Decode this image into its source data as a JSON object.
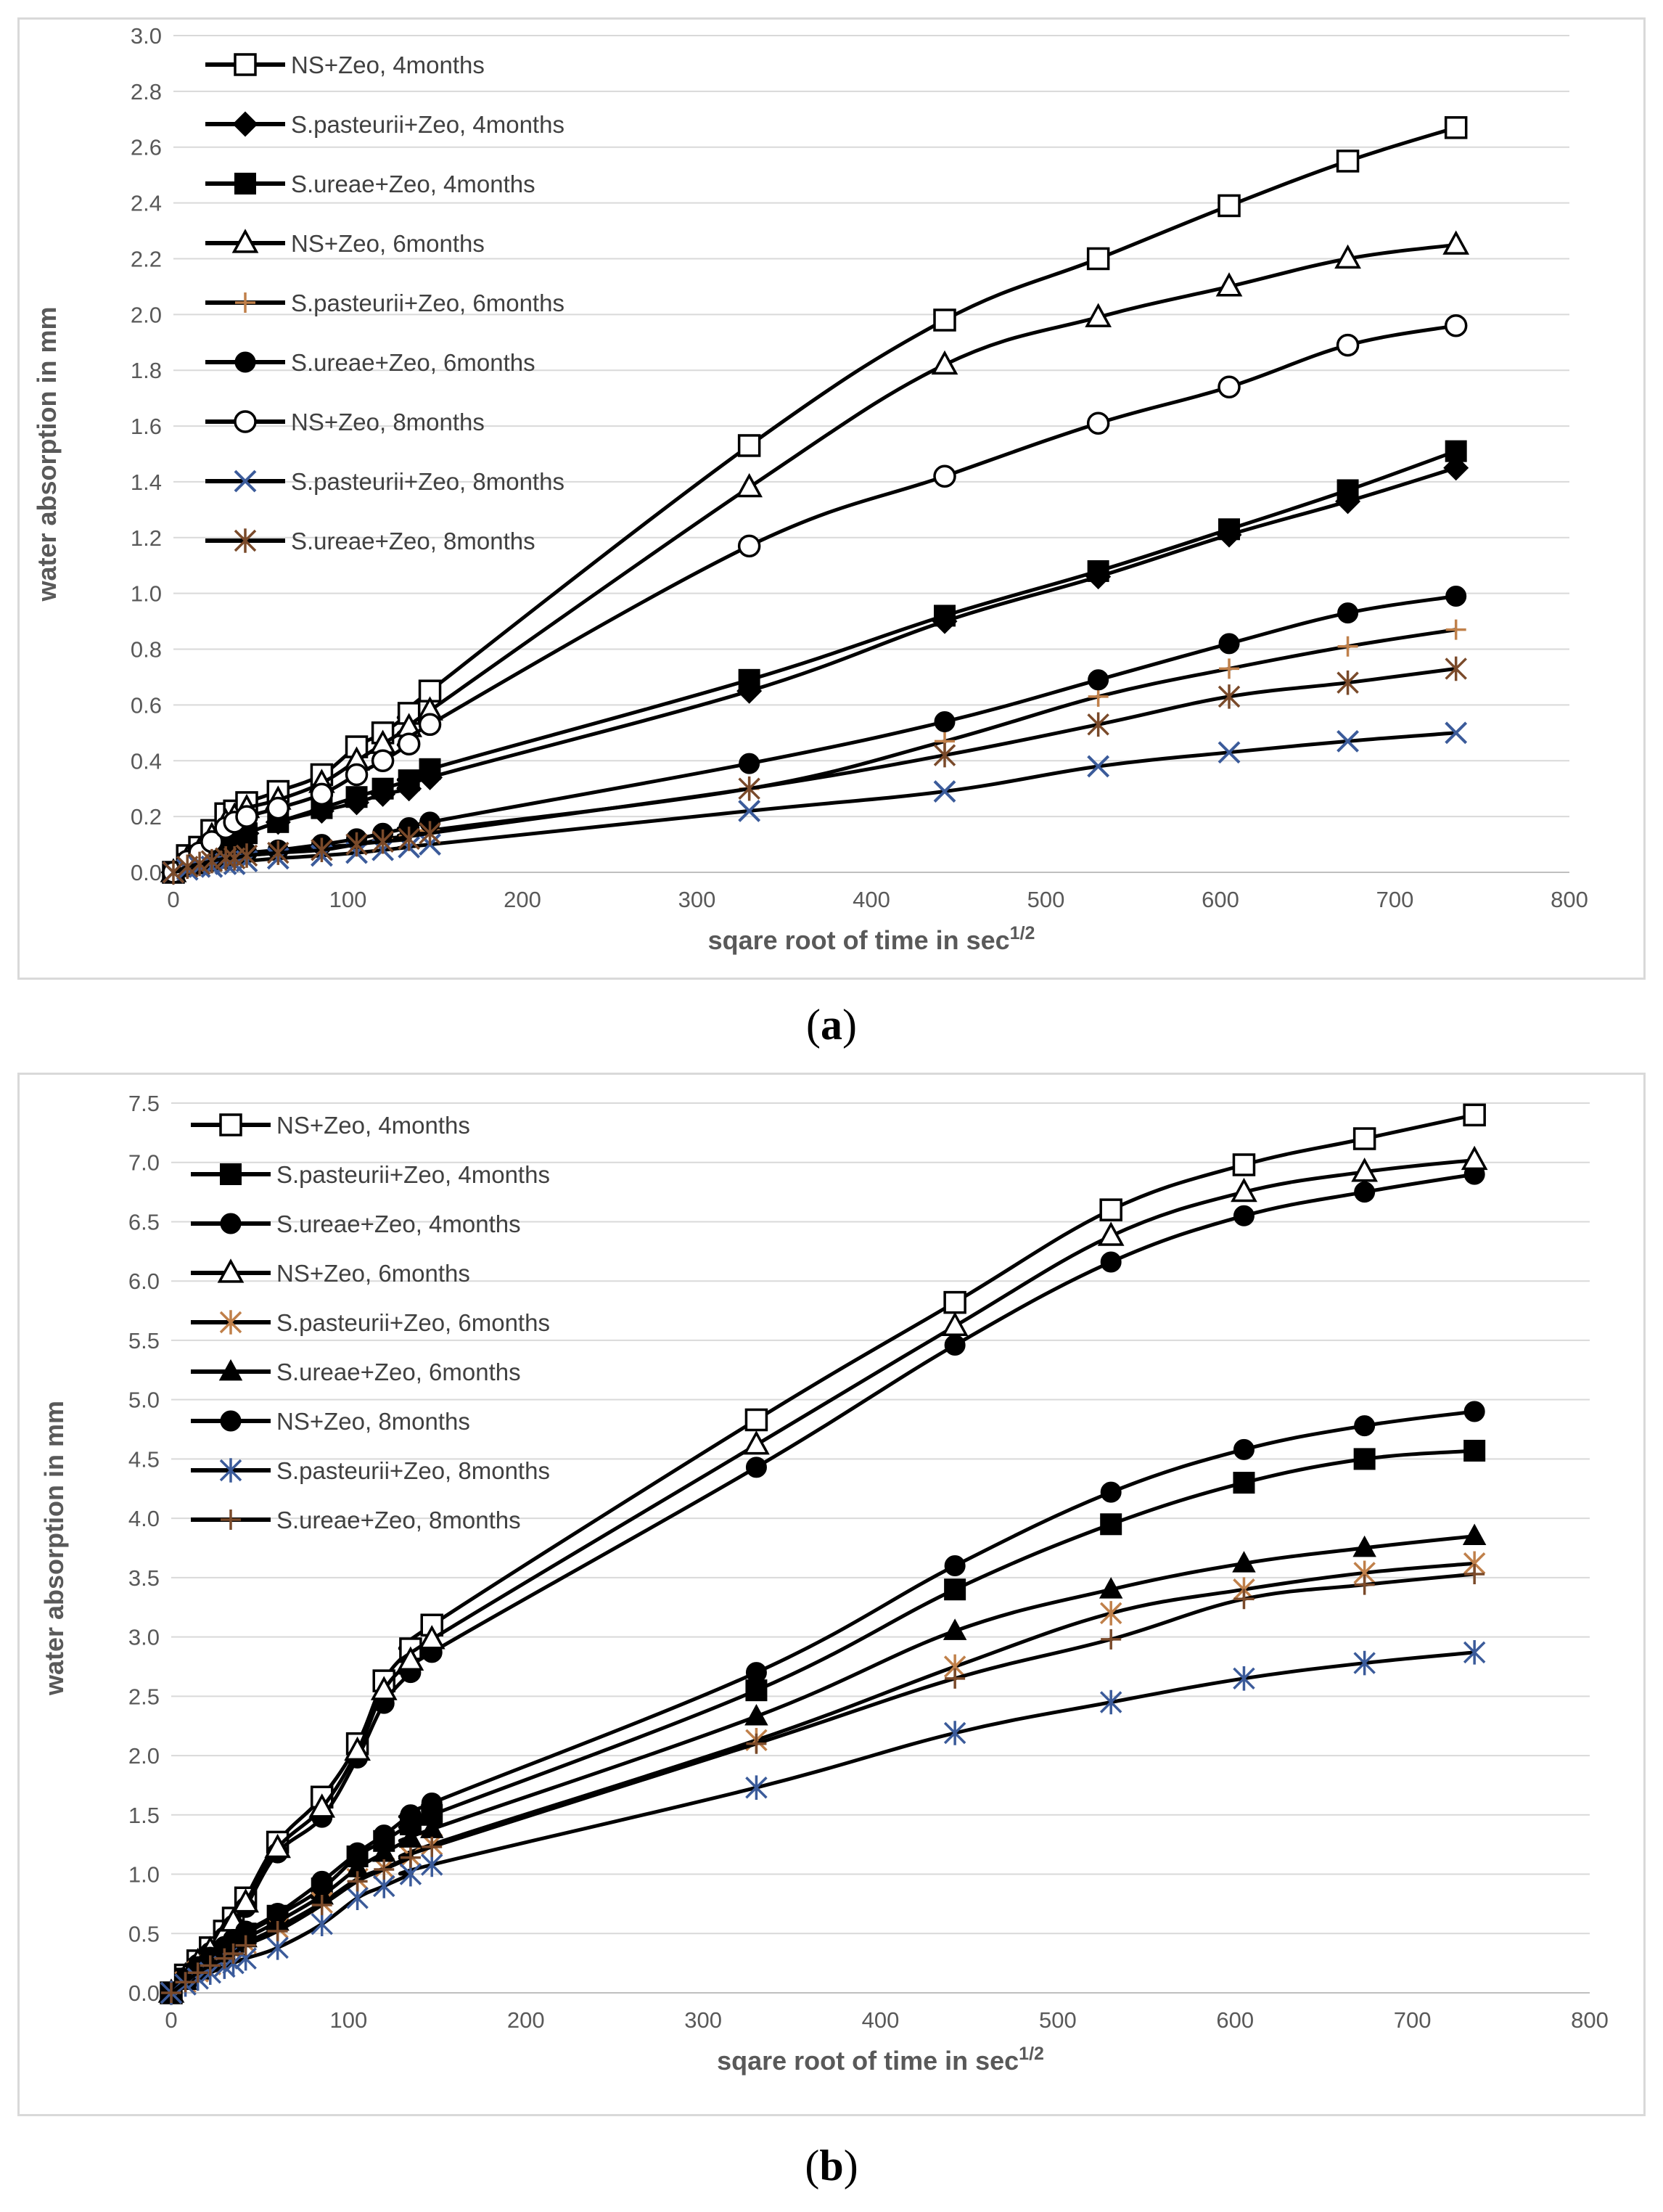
{
  "captions": {
    "a": "a",
    "b": "b"
  },
  "chart_data": [
    {
      "id": "a",
      "type": "line",
      "xlabel": "sqare root of time in sec",
      "xlabel_sup": "1/2",
      "ylabel": "water absorption in mm",
      "xlim": [
        0,
        800
      ],
      "ylim": [
        0,
        3.0
      ],
      "xticks": [
        0,
        100,
        200,
        300,
        400,
        500,
        600,
        700,
        800
      ],
      "yticks": [
        "0.0",
        "0.2",
        "0.4",
        "0.6",
        "0.8",
        "1.0",
        "1.2",
        "1.4",
        "1.6",
        "1.8",
        "2.0",
        "2.2",
        "2.4",
        "2.6",
        "2.8",
        "3.0"
      ],
      "grid": true,
      "legend_position": "top-left",
      "x": [
        0,
        8,
        15,
        22,
        30,
        35,
        42,
        60,
        85,
        105,
        120,
        135,
        147,
        330,
        442,
        530,
        605,
        673,
        735
      ],
      "series": [
        {
          "name": "NS+Zeo, 4months",
          "marker": "square-open",
          "color": "#000000",
          "values": [
            0,
            0.06,
            0.09,
            0.15,
            0.21,
            0.22,
            0.25,
            0.29,
            0.35,
            0.45,
            0.5,
            0.57,
            0.65,
            1.53,
            1.98,
            2.2,
            2.39,
            2.55,
            2.67
          ]
        },
        {
          "name": "S.pasteurii+Zeo, 4months",
          "marker": "diamond-filled",
          "color": "#000000",
          "values": [
            0,
            0.03,
            0.06,
            0.08,
            0.1,
            0.12,
            0.14,
            0.18,
            0.22,
            0.25,
            0.28,
            0.3,
            0.34,
            0.65,
            0.9,
            1.06,
            1.21,
            1.33,
            1.45
          ]
        },
        {
          "name": "S.ureae+Zeo, 4months",
          "marker": "square-filled",
          "color": "#000000",
          "values": [
            0,
            0.03,
            0.06,
            0.08,
            0.1,
            0.12,
            0.14,
            0.18,
            0.23,
            0.27,
            0.3,
            0.33,
            0.37,
            0.69,
            0.92,
            1.08,
            1.23,
            1.37,
            1.51
          ]
        },
        {
          "name": "NS+Zeo, 6months",
          "marker": "triangle-open",
          "color": "#000000",
          "values": [
            0,
            0.05,
            0.08,
            0.13,
            0.18,
            0.2,
            0.23,
            0.26,
            0.32,
            0.4,
            0.46,
            0.52,
            0.58,
            1.38,
            1.82,
            1.99,
            2.1,
            2.2,
            2.25
          ]
        },
        {
          "name": "S.pasteurii+Zeo, 6months",
          "marker": "plus",
          "color": "#c0804a",
          "values": [
            0,
            0.02,
            0.03,
            0.04,
            0.05,
            0.05,
            0.06,
            0.07,
            0.09,
            0.1,
            0.12,
            0.13,
            0.15,
            0.3,
            0.47,
            0.63,
            0.73,
            0.81,
            0.87
          ]
        },
        {
          "name": "S.ureae+Zeo, 6months",
          "marker": "circle-filled",
          "color": "#000000",
          "values": [
            0,
            0.02,
            0.03,
            0.04,
            0.05,
            0.06,
            0.07,
            0.08,
            0.1,
            0.12,
            0.14,
            0.16,
            0.18,
            0.39,
            0.54,
            0.69,
            0.82,
            0.93,
            0.99
          ]
        },
        {
          "name": "NS+Zeo, 8months",
          "marker": "circle-open",
          "color": "#000000",
          "values": [
            0,
            0.04,
            0.07,
            0.11,
            0.16,
            0.18,
            0.2,
            0.23,
            0.28,
            0.35,
            0.4,
            0.46,
            0.53,
            1.17,
            1.42,
            1.61,
            1.74,
            1.89,
            1.96
          ]
        },
        {
          "name": "S.pasteurii+Zeo, 8months",
          "marker": "x",
          "color": "#3b5b9a",
          "values": [
            0,
            0.01,
            0.02,
            0.02,
            0.03,
            0.03,
            0.04,
            0.05,
            0.06,
            0.07,
            0.08,
            0.09,
            0.1,
            0.22,
            0.29,
            0.38,
            0.43,
            0.47,
            0.5
          ]
        },
        {
          "name": "S.ureae+Zeo, 8months",
          "marker": "asterisk",
          "color": "#7a4a2a",
          "values": [
            0,
            0.02,
            0.03,
            0.04,
            0.05,
            0.05,
            0.06,
            0.07,
            0.08,
            0.1,
            0.11,
            0.12,
            0.14,
            0.3,
            0.42,
            0.53,
            0.63,
            0.68,
            0.73
          ]
        }
      ]
    },
    {
      "id": "b",
      "type": "line",
      "xlabel": "sqare root of time in sec",
      "xlabel_sup": "1/2",
      "ylabel": "water absorption in mm",
      "xlim": [
        0,
        800
      ],
      "ylim": [
        0,
        7.5
      ],
      "xticks": [
        0,
        100,
        200,
        300,
        400,
        500,
        600,
        700,
        800
      ],
      "yticks": [
        "0.0",
        "0.5",
        "1.0",
        "1.5",
        "2.0",
        "2.5",
        "3.0",
        "3.5",
        "4.0",
        "4.5",
        "5.0",
        "5.5",
        "6.0",
        "6.5",
        "7.0",
        "7.5"
      ],
      "grid": true,
      "legend_position": "top-left",
      "x": [
        0,
        8,
        15,
        22,
        30,
        35,
        42,
        60,
        85,
        105,
        120,
        135,
        147,
        330,
        442,
        530,
        605,
        673,
        735
      ],
      "series": [
        {
          "name": "NS+Zeo, 4months",
          "marker": "square-open",
          "color": "#000000",
          "values": [
            0,
            0.15,
            0.27,
            0.38,
            0.52,
            0.63,
            0.8,
            1.27,
            1.65,
            2.1,
            2.63,
            2.9,
            3.1,
            4.83,
            5.82,
            6.6,
            6.98,
            7.2,
            7.4
          ]
        },
        {
          "name": "S.pasteurii+Zeo, 4months",
          "marker": "square-filled",
          "color": "#000000",
          "values": [
            0,
            0.12,
            0.2,
            0.28,
            0.37,
            0.43,
            0.5,
            0.65,
            0.88,
            1.15,
            1.28,
            1.42,
            1.5,
            2.55,
            3.4,
            3.95,
            4.3,
            4.5,
            4.57
          ]
        },
        {
          "name": "S.ureae+Zeo, 4months",
          "marker": "circle-filled",
          "color": "#000000",
          "values": [
            0,
            0.13,
            0.24,
            0.34,
            0.47,
            0.57,
            0.72,
            1.18,
            1.48,
            1.98,
            2.44,
            2.7,
            2.87,
            4.43,
            5.46,
            6.16,
            6.55,
            6.75,
            6.9
          ]
        },
        {
          "name": "NS+Zeo, 6months",
          "marker": "triangle-open",
          "color": "#000000",
          "values": [
            0,
            0.14,
            0.26,
            0.36,
            0.5,
            0.6,
            0.76,
            1.22,
            1.56,
            2.04,
            2.55,
            2.8,
            2.98,
            4.62,
            5.62,
            6.38,
            6.75,
            6.92,
            7.02
          ]
        },
        {
          "name": "S.pasteurii+Zeo, 6months",
          "marker": "asterisk",
          "color": "#c0804a",
          "values": [
            0,
            0.09,
            0.18,
            0.24,
            0.3,
            0.35,
            0.42,
            0.55,
            0.76,
            0.96,
            1.05,
            1.15,
            1.25,
            2.13,
            2.75,
            3.2,
            3.4,
            3.54,
            3.62
          ]
        },
        {
          "name": "S.ureae+Zeo, 6months",
          "marker": "triangle-filled",
          "color": "#000000",
          "values": [
            0,
            0.1,
            0.19,
            0.26,
            0.33,
            0.39,
            0.46,
            0.6,
            0.82,
            1.05,
            1.18,
            1.3,
            1.38,
            2.33,
            3.05,
            3.4,
            3.62,
            3.75,
            3.85
          ]
        },
        {
          "name": "NS+Zeo, 8months",
          "marker": "circle-filled",
          "color": "#000000",
          "values": [
            0,
            0.12,
            0.22,
            0.3,
            0.39,
            0.45,
            0.52,
            0.67,
            0.94,
            1.18,
            1.33,
            1.5,
            1.6,
            2.7,
            3.6,
            4.22,
            4.58,
            4.78,
            4.9
          ]
        },
        {
          "name": "S.pasteurii+Zeo, 8months",
          "marker": "asterisk",
          "color": "#3b5b9a",
          "values": [
            0,
            0.07,
            0.12,
            0.17,
            0.22,
            0.25,
            0.29,
            0.38,
            0.58,
            0.8,
            0.9,
            1.0,
            1.08,
            1.73,
            2.19,
            2.45,
            2.65,
            2.78,
            2.87
          ]
        },
        {
          "name": "S.ureae+Zeo, 8months",
          "marker": "plus",
          "color": "#7a4a2a",
          "values": [
            0,
            0.09,
            0.17,
            0.23,
            0.29,
            0.33,
            0.4,
            0.52,
            0.74,
            0.94,
            1.04,
            1.14,
            1.23,
            2.1,
            2.65,
            2.98,
            3.32,
            3.44,
            3.53
          ]
        }
      ]
    }
  ]
}
